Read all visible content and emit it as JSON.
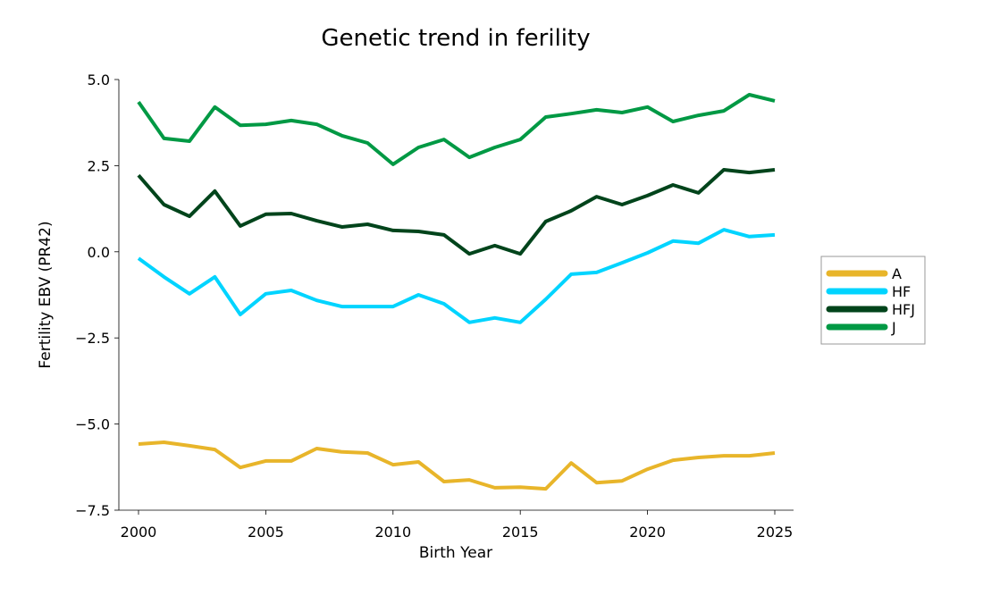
{
  "chart_data": {
    "type": "line",
    "title": "Genetic trend in ferility",
    "xlabel": "Birth Year",
    "ylabel": "Fertility EBV (PR42)",
    "xlim": [
      1999.2,
      2025.7
    ],
    "ylim": [
      -7.5,
      5.0
    ],
    "xticks": [
      2000,
      2005,
      2010,
      2015,
      2020,
      2025
    ],
    "xtick_labels": [
      "2000",
      "2005",
      "2010",
      "2015",
      "2020",
      "2025"
    ],
    "yticks": [
      5.0,
      2.5,
      0.0,
      -2.5,
      -5.0,
      -7.5
    ],
    "ytick_labels": [
      "5.0",
      "2.5",
      "0.0",
      "−2.5",
      "−5.0",
      "−7.5"
    ],
    "grid": false,
    "legend_position": "right",
    "x": [
      2000,
      2001,
      2002,
      2003,
      2004,
      2005,
      2006,
      2007,
      2008,
      2009,
      2010,
      2011,
      2012,
      2013,
      2014,
      2015,
      2016,
      2017,
      2018,
      2019,
      2020,
      2021,
      2022,
      2023,
      2024,
      2025
    ],
    "series": [
      {
        "name": "A",
        "color": "#e8b52a",
        "values": [
          -5.58,
          -5.53,
          -5.63,
          -5.74,
          -6.26,
          -6.07,
          -6.07,
          -5.71,
          -5.81,
          -5.84,
          -6.18,
          -6.1,
          -6.67,
          -6.62,
          -6.85,
          -6.83,
          -6.88,
          -6.13,
          -6.7,
          -6.65,
          -6.31,
          -6.05,
          -5.97,
          -5.92,
          -5.92,
          -5.84
        ]
      },
      {
        "name": "HF",
        "color": "#00d4ff",
        "values": [
          -0.19,
          -0.73,
          -1.22,
          -0.73,
          -1.82,
          -1.22,
          -1.12,
          -1.41,
          -1.59,
          -1.59,
          -1.59,
          -1.25,
          -1.51,
          -2.05,
          -1.92,
          -2.05,
          -1.38,
          -0.65,
          -0.6,
          -0.32,
          -0.03,
          0.31,
          0.25,
          0.64,
          0.44,
          0.49
        ]
      },
      {
        "name": "HFJ",
        "color": "#00441b",
        "values": [
          2.22,
          1.37,
          1.03,
          1.76,
          0.75,
          1.09,
          1.11,
          0.9,
          0.72,
          0.8,
          0.62,
          0.59,
          0.49,
          -0.06,
          0.18,
          -0.06,
          0.88,
          1.19,
          1.6,
          1.37,
          1.63,
          1.94,
          1.71,
          2.38,
          2.3,
          2.38
        ]
      },
      {
        "name": "J",
        "color": "#009944",
        "values": [
          4.35,
          3.29,
          3.21,
          4.2,
          3.67,
          3.7,
          3.81,
          3.7,
          3.37,
          3.16,
          2.54,
          3.03,
          3.26,
          2.74,
          3.03,
          3.26,
          3.91,
          4.01,
          4.12,
          4.04,
          4.2,
          3.78,
          3.96,
          4.09,
          4.56,
          4.38
        ]
      }
    ]
  }
}
